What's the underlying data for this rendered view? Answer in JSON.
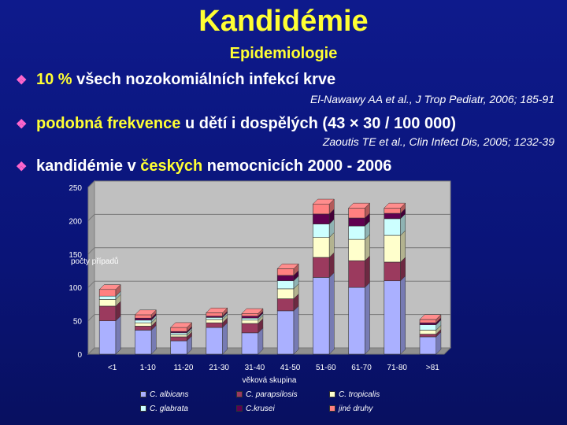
{
  "header": {
    "title": "Kandidémie",
    "subtitle": "Epidemiologie"
  },
  "bullets": [
    {
      "hl": "10 %",
      "text": " všech nozokomiálních infekcí krve",
      "ref": "El-Nawawy AA et al., J Trop Pediatr, 2006; 185-91"
    },
    {
      "hl": "podobná frekvence",
      "text": " u dětí i dospělých (43 × 30 / 100 000)",
      "ref": "Zaoutis TE et al., Clin Infect Dis, 2005; 1232-39"
    },
    {
      "pre": "kandidémie v ",
      "hl": "českých",
      "text": " nemocnicích 2000 - 2006"
    }
  ],
  "chart_data": {
    "type": "bar",
    "stacked": true,
    "ylabel": "počty případů",
    "xlabel": "věková skupina",
    "ylim": [
      0,
      250
    ],
    "yticks": [
      0,
      50,
      100,
      150,
      200,
      250
    ],
    "categories": [
      "<1",
      "1-10",
      "11-20",
      "21-30",
      "31-40",
      "41-50",
      "51-60",
      "61-70",
      "71-80",
      ">81"
    ],
    "series": [
      {
        "name": "C. albicans",
        "color": "#aab0ff",
        "values": [
          50,
          36,
          20,
          40,
          32,
          65,
          115,
          100,
          110,
          26
        ]
      },
      {
        "name": "C. parapsilosis",
        "color": "#9b3a5e",
        "values": [
          22,
          6,
          6,
          7,
          14,
          18,
          30,
          40,
          28,
          4
        ]
      },
      {
        "name": "C. tropicalis",
        "color": "#ffffcc",
        "values": [
          10,
          5,
          3,
          5,
          5,
          15,
          30,
          32,
          40,
          6
        ]
      },
      {
        "name": "C. glabrata",
        "color": "#ccffff",
        "values": [
          5,
          4,
          3,
          3,
          3,
          12,
          20,
          20,
          25,
          8
        ]
      },
      {
        "name": "C.krusei",
        "color": "#600050",
        "values": [
          0,
          3,
          2,
          2,
          3,
          8,
          15,
          12,
          8,
          3
        ]
      },
      {
        "name": "jiné druhy",
        "color": "#ff8080",
        "values": [
          10,
          5,
          6,
          5,
          4,
          10,
          15,
          15,
          8,
          5
        ]
      }
    ],
    "legend_position": "bottom"
  }
}
